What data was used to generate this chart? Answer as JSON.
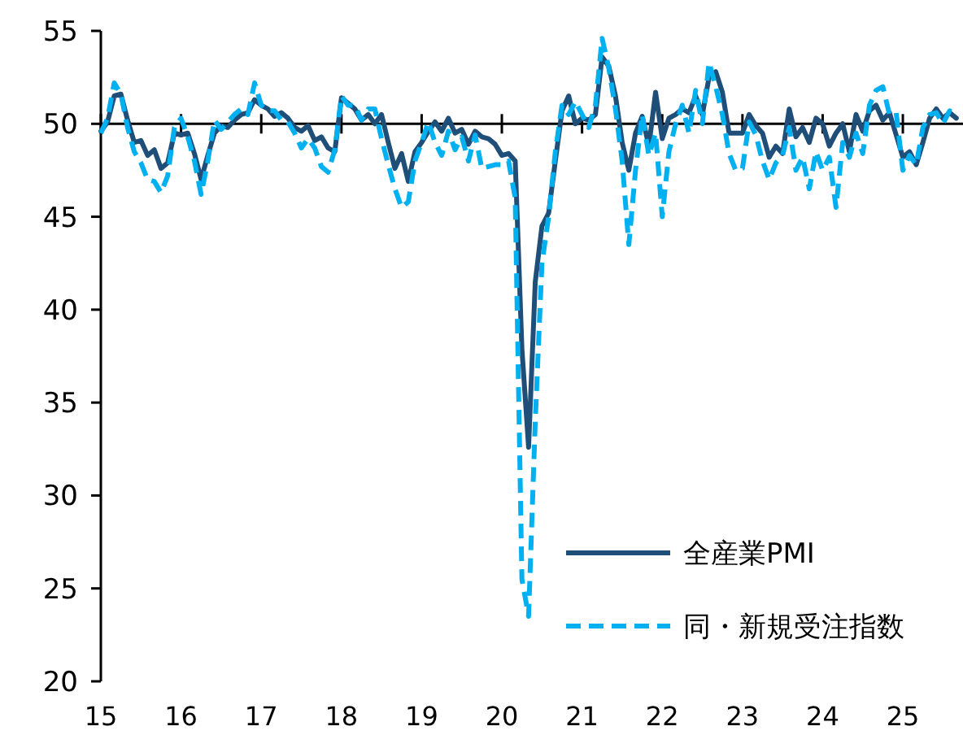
{
  "chart_data": {
    "type": "line",
    "x": [
      "2015-01",
      "2015-02",
      "2015-03",
      "2015-04",
      "2015-05",
      "2015-06",
      "2015-07",
      "2015-08",
      "2015-09",
      "2015-10",
      "2015-11",
      "2015-12",
      "2016-01",
      "2016-02",
      "2016-03",
      "2016-04",
      "2016-05",
      "2016-06",
      "2016-07",
      "2016-08",
      "2016-09",
      "2016-10",
      "2016-11",
      "2016-12",
      "2017-01",
      "2017-02",
      "2017-03",
      "2017-04",
      "2017-05",
      "2017-06",
      "2017-07",
      "2017-08",
      "2017-09",
      "2017-10",
      "2017-11",
      "2017-12",
      "2018-01",
      "2018-02",
      "2018-03",
      "2018-04",
      "2018-05",
      "2018-06",
      "2018-07",
      "2018-08",
      "2018-09",
      "2018-10",
      "2018-11",
      "2018-12",
      "2019-01",
      "2019-02",
      "2019-03",
      "2019-04",
      "2019-05",
      "2019-06",
      "2019-07",
      "2019-08",
      "2019-09",
      "2019-10",
      "2019-11",
      "2019-12",
      "2020-01",
      "2020-02",
      "2020-03",
      "2020-04",
      "2020-05",
      "2020-06",
      "2020-07",
      "2020-08",
      "2020-09",
      "2020-10",
      "2020-11",
      "2020-12",
      "2021-01",
      "2021-02",
      "2021-03",
      "2021-04",
      "2021-05",
      "2021-06",
      "2021-07",
      "2021-08",
      "2021-09",
      "2021-10",
      "2021-11",
      "2021-12",
      "2022-01",
      "2022-02",
      "2022-03",
      "2022-04",
      "2022-05",
      "2022-06",
      "2022-07",
      "2022-08",
      "2022-09",
      "2022-10",
      "2022-11",
      "2022-12",
      "2023-01",
      "2023-02",
      "2023-03",
      "2023-04",
      "2023-05",
      "2023-06",
      "2023-07",
      "2023-08",
      "2023-09",
      "2023-10",
      "2023-11",
      "2023-12",
      "2024-01",
      "2024-02",
      "2024-03",
      "2024-04",
      "2024-05",
      "2024-06",
      "2024-07",
      "2024-08",
      "2024-09",
      "2024-10",
      "2024-11",
      "2024-12",
      "2025-01",
      "2025-02",
      "2025-03",
      "2025-04",
      "2025-05",
      "2025-06",
      "2025-07",
      "2025-08",
      "2025-09"
    ],
    "xlim": [
      "2015-01",
      "2025-10"
    ],
    "xticks": [
      {
        "value": "2015-01",
        "label": "15"
      },
      {
        "value": "2016-01",
        "label": "16"
      },
      {
        "value": "2017-01",
        "label": "17"
      },
      {
        "value": "2018-01",
        "label": "18"
      },
      {
        "value": "2019-01",
        "label": "19"
      },
      {
        "value": "2020-01",
        "label": "20"
      },
      {
        "value": "2021-01",
        "label": "21"
      },
      {
        "value": "2022-01",
        "label": "22"
      },
      {
        "value": "2023-01",
        "label": "23"
      },
      {
        "value": "2024-01",
        "label": "24"
      },
      {
        "value": "2025-01",
        "label": "25"
      }
    ],
    "ylim": [
      20,
      55
    ],
    "yticks": [
      20,
      25,
      30,
      35,
      40,
      45,
      50,
      55
    ],
    "ref_lines": [
      {
        "axis": "y",
        "value": 50,
        "color": "#000000"
      }
    ],
    "legend": "bottom right",
    "series": [
      {
        "name": "全産業PMI",
        "color": "#1f4e79",
        "line_style": "solid",
        "values": [
          49.6,
          50.1,
          51.5,
          51.6,
          50.2,
          49.0,
          49.1,
          48.3,
          48.6,
          47.6,
          47.9,
          49.5,
          49.4,
          49.5,
          48.4,
          47.0,
          48.3,
          49.5,
          49.9,
          49.8,
          50.2,
          50.5,
          50.6,
          51.3,
          51.0,
          50.8,
          50.4,
          50.6,
          50.3,
          49.8,
          49.6,
          49.9,
          49.1,
          49.3,
          48.7,
          48.5,
          51.4,
          51.1,
          50.8,
          50.2,
          50.5,
          50.0,
          50.5,
          49.0,
          47.6,
          48.4,
          46.9,
          48.5,
          49.0,
          49.6,
          50.1,
          49.6,
          50.3,
          49.5,
          49.7,
          48.9,
          49.6,
          49.3,
          49.2,
          48.9,
          48.3,
          48.4,
          48.0,
          37.9,
          32.6,
          41.5,
          44.5,
          45.2,
          48.0,
          50.7,
          51.5,
          50.0,
          50.3,
          50.2,
          50.5,
          53.6,
          53.1,
          51.5,
          49.0,
          47.5,
          49.5,
          50.4,
          48.8,
          51.7,
          49.2,
          50.3,
          50.5,
          50.8,
          50.6,
          51.5,
          50.5,
          52.5,
          52.8,
          51.7,
          49.5,
          49.5,
          49.5,
          50.5,
          49.9,
          49.5,
          48.2,
          48.8,
          48.4,
          50.8,
          49.3,
          49.8,
          49.0,
          50.3,
          50.0,
          48.8,
          49.5,
          50.0,
          48.5,
          50.5,
          49.6,
          50.7,
          51.0,
          50.2,
          50.6,
          49.4,
          48.2,
          48.5,
          47.8,
          49.0,
          50.3,
          50.8,
          50.3,
          50.6,
          50.3
        ]
      },
      {
        "name": "同・新規受注指数",
        "color": "#00b0f0",
        "line_style": "dashed",
        "values": [
          49.5,
          50.3,
          52.2,
          51.6,
          49.8,
          48.5,
          47.9,
          47.0,
          46.9,
          46.3,
          47.2,
          49.8,
          50.3,
          49.3,
          48.0,
          46.2,
          48.0,
          50.2,
          49.7,
          50.1,
          50.5,
          50.8,
          50.5,
          52.2,
          51.0,
          50.7,
          50.7,
          50.2,
          50.1,
          49.5,
          48.7,
          49.2,
          48.7,
          47.7,
          47.4,
          48.6,
          51.5,
          51.0,
          51.0,
          50.2,
          50.8,
          50.8,
          49.2,
          47.8,
          46.5,
          45.5,
          45.8,
          48.0,
          49.0,
          50.1,
          49.0,
          48.3,
          49.6,
          48.6,
          49.3,
          48.0,
          49.4,
          47.6,
          47.7,
          47.8,
          47.8,
          48.0,
          46.0,
          25.5,
          23.5,
          34.0,
          42.5,
          45.0,
          48.5,
          51.0,
          50.5,
          51.2,
          50.5,
          49.8,
          51.0,
          54.6,
          53.0,
          50.8,
          48.0,
          43.5,
          47.5,
          50.5,
          48.3,
          49.5,
          45.0,
          48.5,
          50.0,
          51.0,
          49.5,
          51.8,
          50.0,
          53.3,
          52.0,
          50.5,
          48.4,
          47.5,
          47.6,
          50.1,
          49.4,
          48.0,
          47.0,
          47.9,
          48.3,
          49.8,
          47.5,
          48.2,
          46.5,
          48.5,
          47.5,
          48.2,
          45.5,
          49.0,
          48.2,
          49.5,
          48.4,
          51.0,
          51.8,
          52.0,
          50.5,
          50.6,
          47.5,
          48.3,
          47.8,
          49.8,
          50.5,
          50.6,
          50.0,
          50.7,
          50.5
        ]
      }
    ]
  }
}
